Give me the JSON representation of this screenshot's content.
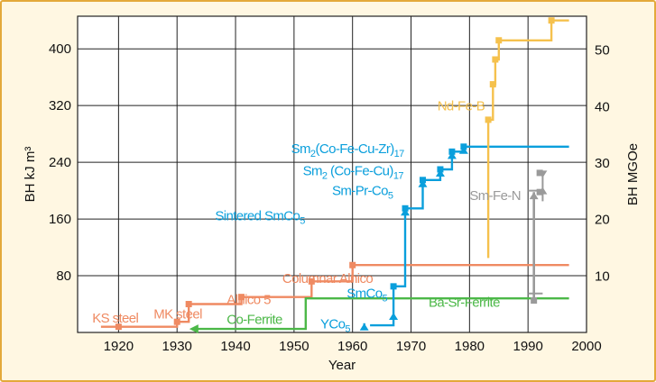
{
  "chart_data": {
    "type": "line",
    "xlabel": "Year",
    "ylabel_left": "BH kJ m³",
    "ylabel_right": "BH MGOe",
    "xlim": [
      1913,
      2000
    ],
    "ylim_left": [
      0,
      446
    ],
    "ylim_right_mgoe": [
      0,
      56
    ],
    "x_ticks": [
      1920,
      1930,
      1940,
      1950,
      1960,
      1970,
      1980,
      1990,
      2000
    ],
    "y_ticks_left": [
      80,
      160,
      240,
      320,
      400
    ],
    "y_ticks_right": [
      10,
      20,
      30,
      40,
      50
    ],
    "grid": true,
    "colors": {
      "steels_alnico": "#ef8a62",
      "ferrites": "#4cb848",
      "rare_earth_cobalt": "#0a9fdc",
      "nd_fe_b": "#f5c14d",
      "sm_fe_n": "#9a9a9a",
      "frame_border": "#e4a93a",
      "frame_fill": "#fff7e2"
    },
    "series": [
      {
        "id": "alnico",
        "color": "#ef8a62",
        "points": [
          [
            1917,
            8
          ],
          [
            1930,
            8
          ],
          [
            1930,
            15
          ],
          [
            1932,
            15
          ],
          [
            1932,
            40
          ],
          [
            1941,
            40
          ],
          [
            1941,
            50
          ],
          [
            1953,
            50
          ],
          [
            1953,
            72
          ],
          [
            1960,
            72
          ],
          [
            1960,
            95
          ],
          [
            1997,
            95
          ]
        ],
        "markers": [
          [
            1920,
            8
          ],
          [
            1930,
            15
          ],
          [
            1932,
            40
          ],
          [
            1941,
            50
          ],
          [
            1953,
            72
          ],
          [
            1960,
            95
          ]
        ]
      },
      {
        "id": "ferrite",
        "color": "#4cb848",
        "points": [
          [
            1933,
            5
          ],
          [
            1952,
            5
          ],
          [
            1952,
            48
          ],
          [
            1997,
            48
          ]
        ],
        "arrow_left": true
      },
      {
        "id": "rare-earth-cobalt",
        "color": "#0a9fdc",
        "points": [
          [
            1963,
            10
          ],
          [
            1967,
            10
          ],
          [
            1967,
            28
          ],
          [
            1967,
            65
          ],
          [
            1969,
            65
          ],
          [
            1969,
            175
          ],
          [
            1972,
            175
          ],
          [
            1972,
            215
          ],
          [
            1975,
            215
          ],
          [
            1975,
            230
          ],
          [
            1977,
            230
          ],
          [
            1977,
            255
          ],
          [
            1979,
            255
          ],
          [
            1979,
            262
          ],
          [
            1997,
            262
          ]
        ],
        "markers": [
          [
            1967,
            65
          ],
          [
            1969,
            175
          ],
          [
            1972,
            215
          ],
          [
            1975,
            230
          ],
          [
            1977,
            255
          ],
          [
            1979,
            262
          ]
        ],
        "arrow_tips": [
          [
            1962,
            13
          ],
          [
            1967,
            28
          ],
          [
            1969,
            175
          ],
          [
            1972,
            215
          ],
          [
            1975,
            230
          ],
          [
            1977,
            255
          ],
          [
            1979,
            262
          ]
        ]
      },
      {
        "id": "nd-fe-b",
        "color": "#f5c14d",
        "points": [
          [
            1983.2,
            105
          ],
          [
            1983.2,
            300
          ],
          [
            1984,
            300
          ],
          [
            1984,
            350
          ],
          [
            1984.4,
            350
          ],
          [
            1984.4,
            385
          ],
          [
            1985,
            385
          ],
          [
            1985,
            412
          ],
          [
            1994,
            412
          ],
          [
            1994,
            440
          ],
          [
            1997,
            440
          ]
        ],
        "markers": [
          [
            1983.2,
            300
          ],
          [
            1984,
            350
          ],
          [
            1984.4,
            385
          ],
          [
            1985,
            412
          ],
          [
            1994,
            440
          ]
        ]
      },
      {
        "id": "sm-fe-n",
        "color": "#9a9a9a",
        "vertical_arrow": {
          "x": 1991,
          "from": 45,
          "to": 198
        },
        "bracket_ticks": [
          [
            1991,
            86
          ],
          [
            1991,
            222
          ]
        ],
        "markers": [
          [
            1991,
            45
          ],
          [
            1992,
            225
          ],
          [
            1992,
            198
          ]
        ]
      }
    ],
    "annotations": [
      {
        "text": "KS steel",
        "color": "#ef8a62",
        "x": 1915.5,
        "y": 14
      },
      {
        "text": "MK steel",
        "color": "#ef8a62",
        "x": 1926,
        "y": 20
      },
      {
        "text": "Alnico 5",
        "color": "#ef8a62",
        "x": 1938.5,
        "y": 40
      },
      {
        "text": "Columnar Alnico",
        "color": "#ef8a62",
        "x": 1948,
        "y": 70
      },
      {
        "text": "SmCo",
        "sub": "5",
        "color": "#0a9fdc",
        "x": 1959,
        "y": 49
      },
      {
        "text": "Co-Ferrite",
        "color": "#4cb848",
        "x": 1938.5,
        "y": 12
      },
      {
        "text": "Ba-Sr-Ferrite",
        "color": "#4cb848",
        "x": 1973,
        "y": 36
      },
      {
        "text": "YCo",
        "sub": "5",
        "color": "#0a9fdc",
        "x": 1954.5,
        "y": 6
      },
      {
        "text": "Sintered SmCo",
        "sub": "5",
        "color": "#0a9fdc",
        "x": 1936.5,
        "y": 158
      },
      {
        "text": "Sm-Pr-Co",
        "sub": "5",
        "color": "#0a9fdc",
        "x": 1956.5,
        "y": 194
      },
      {
        "text": "Sm",
        "sub": "2",
        "text2": " (Co-Fe-Cu)",
        "sub2": "17",
        "color": "#0a9fdc",
        "x": 1951.5,
        "y": 222
      },
      {
        "text": "Sm",
        "sub": "2",
        "text2": "(Co-Fe-Cu-Zr)",
        "sub2": "17",
        "color": "#0a9fdc",
        "x": 1949.5,
        "y": 253
      },
      {
        "text": "Nd-Fe-B",
        "color": "#f5c14d",
        "x": 1974.5,
        "y": 313
      },
      {
        "text": "Sm-Fe-N",
        "color": "#9a9a9a",
        "x": 1980,
        "y": 187
      }
    ]
  }
}
